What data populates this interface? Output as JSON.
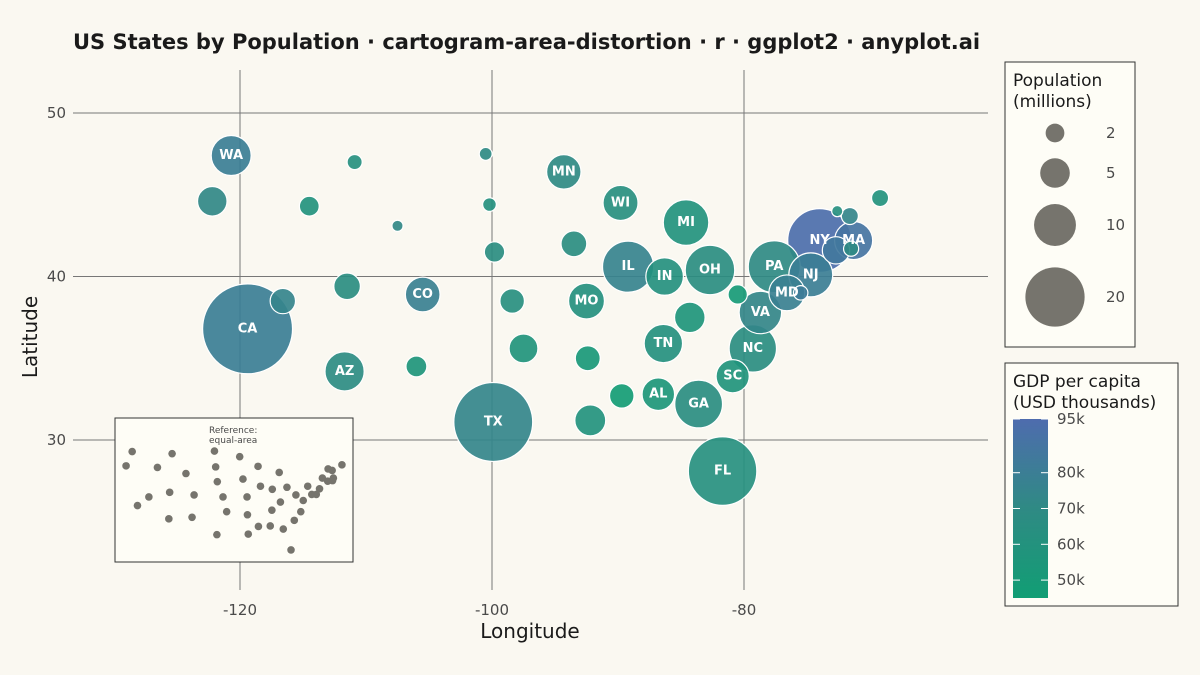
{
  "chart_data": {
    "type": "scatter",
    "title": "US States by Population · cartogram-area-distortion · r · ggplot2 · anyplot.ai",
    "xlabel": "Longitude",
    "ylabel": "Latitude",
    "xlim": [
      -120,
      -80
    ],
    "ylim": [
      30,
      50
    ],
    "x_ticks": [
      "-120",
      "-100",
      "-80"
    ],
    "y_ticks": [
      "30",
      "40",
      "50"
    ],
    "grid": true,
    "size_legend": {
      "title_line1": "Population",
      "title_line2": "(millions)",
      "entries": [
        2,
        5,
        10,
        20
      ],
      "labels": [
        "2",
        "5",
        "10",
        "20"
      ]
    },
    "color_legend": {
      "title_line1": "GDP per capita",
      "title_line2": "(USD thousands)",
      "ticks": [
        "95k",
        "80k",
        "70k",
        "60k",
        "50k"
      ],
      "tick_values": [
        95,
        80,
        70,
        60,
        50
      ],
      "range": [
        45,
        95
      ],
      "low_color": "#119E74",
      "high_color": "#4E6CAE"
    },
    "inset": {
      "title_line1": "Reference:",
      "title_line2": "equal-area"
    },
    "points": [
      {
        "label": "WA",
        "lon": -120.7,
        "lat": 47.4,
        "pop": 7.7,
        "gdp": 80
      },
      {
        "label": "",
        "lon": -122.2,
        "lat": 44.6,
        "pop": 4.2,
        "gdp": 72
      },
      {
        "label": "CA",
        "lon": -119.4,
        "lat": 36.8,
        "pop": 39.0,
        "gdp": 80
      },
      {
        "label": "",
        "lon": -116.6,
        "lat": 38.5,
        "pop": 3.1,
        "gdp": 75
      },
      {
        "label": "",
        "lon": -114.5,
        "lat": 44.3,
        "pop": 1.9,
        "gdp": 60
      },
      {
        "label": "",
        "lon": -110.9,
        "lat": 47.0,
        "pop": 1.1,
        "gdp": 63
      },
      {
        "label": "",
        "lon": -107.5,
        "lat": 43.1,
        "pop": 0.6,
        "gdp": 72
      },
      {
        "label": "",
        "lon": -111.5,
        "lat": 39.4,
        "pop": 3.4,
        "gdp": 66
      },
      {
        "label": "AZ",
        "lon": -111.7,
        "lat": 34.2,
        "pop": 7.4,
        "gdp": 68
      },
      {
        "label": "CO",
        "lon": -105.5,
        "lat": 38.9,
        "pop": 5.8,
        "gdp": 78
      },
      {
        "label": "",
        "lon": -106.0,
        "lat": 34.5,
        "pop": 2.1,
        "gdp": 56
      },
      {
        "label": "",
        "lon": -100.5,
        "lat": 47.5,
        "pop": 0.8,
        "gdp": 70
      },
      {
        "label": "",
        "lon": -100.2,
        "lat": 44.4,
        "pop": 0.9,
        "gdp": 62
      },
      {
        "label": "",
        "lon": -99.8,
        "lat": 41.5,
        "pop": 2.0,
        "gdp": 66
      },
      {
        "label": "",
        "lon": -98.4,
        "lat": 38.5,
        "pop": 2.9,
        "gdp": 64
      },
      {
        "label": "TX",
        "lon": -99.9,
        "lat": 31.1,
        "pop": 30.0,
        "gdp": 74
      },
      {
        "label": "",
        "lon": -97.5,
        "lat": 35.6,
        "pop": 4.0,
        "gdp": 58
      },
      {
        "label": "MN",
        "lon": -94.3,
        "lat": 46.4,
        "pop": 5.7,
        "gdp": 70
      },
      {
        "label": "",
        "lon": -93.5,
        "lat": 42.0,
        "pop": 3.2,
        "gdp": 66
      },
      {
        "label": "MO",
        "lon": -92.5,
        "lat": 38.5,
        "pop": 6.2,
        "gdp": 62
      },
      {
        "label": "",
        "lon": -92.4,
        "lat": 35.0,
        "pop": 3.0,
        "gdp": 52
      },
      {
        "label": "",
        "lon": -92.2,
        "lat": 31.2,
        "pop": 4.6,
        "gdp": 60
      },
      {
        "label": "WI",
        "lon": -89.8,
        "lat": 44.5,
        "pop": 5.9,
        "gdp": 64
      },
      {
        "label": "IL",
        "lon": -89.2,
        "lat": 40.6,
        "pop": 12.6,
        "gdp": 76
      },
      {
        "label": "",
        "lon": -89.7,
        "lat": 32.7,
        "pop": 2.9,
        "gdp": 47
      },
      {
        "label": "TN",
        "lon": -86.4,
        "lat": 35.9,
        "pop": 7.1,
        "gdp": 62
      },
      {
        "label": "AL",
        "lon": -86.8,
        "lat": 32.8,
        "pop": 5.1,
        "gdp": 55
      },
      {
        "label": "IN",
        "lon": -86.3,
        "lat": 40.0,
        "pop": 6.8,
        "gdp": 62
      },
      {
        "label": "MI",
        "lon": -84.6,
        "lat": 43.3,
        "pop": 10.0,
        "gdp": 60
      },
      {
        "label": "OH",
        "lon": -82.7,
        "lat": 40.4,
        "pop": 11.8,
        "gdp": 66
      },
      {
        "label": "",
        "lon": -84.3,
        "lat": 37.5,
        "pop": 4.5,
        "gdp": 56
      },
      {
        "label": "GA",
        "lon": -83.6,
        "lat": 32.2,
        "pop": 11.0,
        "gdp": 66
      },
      {
        "label": "FL",
        "lon": -81.7,
        "lat": 28.1,
        "pop": 22.6,
        "gdp": 63
      },
      {
        "label": "SC",
        "lon": -80.9,
        "lat": 33.9,
        "pop": 5.3,
        "gdp": 58
      },
      {
        "label": "NC",
        "lon": -79.3,
        "lat": 35.6,
        "pop": 10.8,
        "gdp": 66
      },
      {
        "label": "",
        "lon": -80.5,
        "lat": 38.9,
        "pop": 1.8,
        "gdp": 50
      },
      {
        "label": "VA",
        "lon": -78.7,
        "lat": 37.8,
        "pop": 8.7,
        "gdp": 73
      },
      {
        "label": "PA",
        "lon": -77.6,
        "lat": 40.6,
        "pop": 13.0,
        "gdp": 70
      },
      {
        "label": "MD",
        "lon": -76.6,
        "lat": 39.0,
        "pop": 6.2,
        "gdp": 78
      },
      {
        "label": "",
        "lon": -75.5,
        "lat": 39.0,
        "pop": 1.0,
        "gdp": 82
      },
      {
        "label": "NY",
        "lon": -74.0,
        "lat": 42.2,
        "pop": 19.6,
        "gdp": 93
      },
      {
        "label": "NJ",
        "lon": -74.7,
        "lat": 40.1,
        "pop": 9.3,
        "gdp": 80
      },
      {
        "label": "",
        "lon": -72.7,
        "lat": 41.6,
        "pop": 3.6,
        "gdp": 85
      },
      {
        "label": "",
        "lon": -71.5,
        "lat": 41.7,
        "pop": 1.1,
        "gdp": 70
      },
      {
        "label": "MA",
        "lon": -71.3,
        "lat": 42.2,
        "pop": 7.0,
        "gdp": 88
      },
      {
        "label": "",
        "lon": -71.6,
        "lat": 43.7,
        "pop": 1.4,
        "gdp": 74
      },
      {
        "label": "",
        "lon": -72.6,
        "lat": 44.0,
        "pop": 0.6,
        "gdp": 63
      },
      {
        "label": "",
        "lon": -69.2,
        "lat": 44.8,
        "pop": 1.4,
        "gdp": 60
      }
    ]
  }
}
